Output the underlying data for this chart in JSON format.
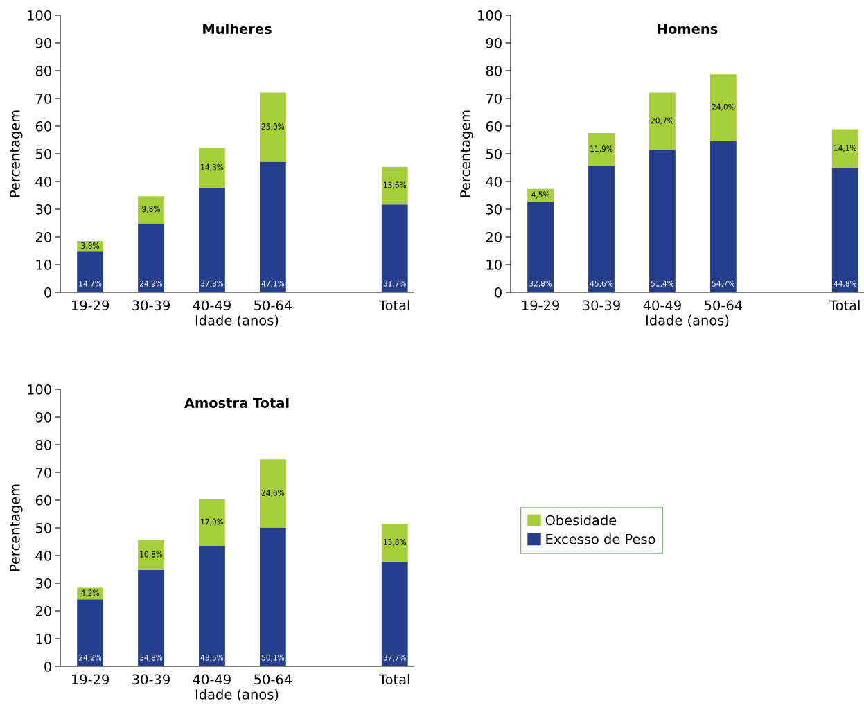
{
  "chart_data": [
    {
      "type": "bar",
      "stacked": true,
      "title": "Mulheres",
      "xlabel": "Idade (anos)",
      "ylabel": "Percentagem",
      "categories": [
        "19-29",
        "30-39",
        "40-49",
        "50-64",
        null,
        "Total"
      ],
      "ylim": [
        0,
        100
      ],
      "yticks": [
        0,
        10,
        20,
        30,
        40,
        50,
        60,
        70,
        80,
        90,
        100
      ],
      "grid": false,
      "legend": false,
      "series": [
        {
          "color": "#253f8e",
          "values": [
            14.7,
            24.9,
            37.8,
            47.1,
            null,
            31.7
          ],
          "value_labels": [
            "14,7%",
            "24,9%",
            "37,8%",
            "47,1%",
            null,
            "31,7%"
          ]
        },
        {
          "color": "#a6ce39",
          "values": [
            3.8,
            9.8,
            14.3,
            25.0,
            null,
            13.6
          ],
          "value_labels": [
            "3,8%",
            "9,8%",
            "14,3%",
            "25,0%",
            null,
            "13,6%"
          ]
        }
      ]
    },
    {
      "type": "bar",
      "stacked": true,
      "title": "Homens",
      "xlabel": "Idade (anos)",
      "ylabel": "Percentagem",
      "categories": [
        "19-29",
        "30-39",
        "40-49",
        "50-64",
        null,
        "Total"
      ],
      "ylim": [
        0,
        100
      ],
      "yticks": [
        0,
        10,
        20,
        30,
        40,
        50,
        60,
        70,
        80,
        90,
        100
      ],
      "grid": false,
      "legend": false,
      "series": [
        {
          "color": "#253f8e",
          "values": [
            32.8,
            45.6,
            51.4,
            54.7,
            null,
            44.8
          ],
          "value_labels": [
            "32,8%",
            "45,6%",
            "51,4%",
            "54,7%",
            null,
            "44,8%"
          ]
        },
        {
          "color": "#a6ce39",
          "values": [
            4.5,
            11.9,
            20.7,
            24.0,
            null,
            14.1
          ],
          "value_labels": [
            "4,5%",
            "11,9%",
            "20,7%",
            "24,0%",
            null,
            "14,1%"
          ]
        }
      ]
    },
    {
      "type": "bar",
      "stacked": true,
      "title": "Amostra Total",
      "xlabel": "Idade (anos)",
      "ylabel": "Percentagem",
      "categories": [
        "19-29",
        "30-39",
        "40-49",
        "50-64",
        null,
        "Total"
      ],
      "ylim": [
        0,
        100
      ],
      "yticks": [
        0,
        10,
        20,
        30,
        40,
        50,
        60,
        70,
        80,
        90,
        100
      ],
      "grid": false,
      "legend": "right",
      "series": [
        {
          "name": "Excesso de Peso",
          "color": "#253f8e",
          "values": [
            24.2,
            34.8,
            43.5,
            50.1,
            null,
            37.7
          ],
          "value_labels": [
            "24,2%",
            "34,8%",
            "43,5%",
            "50,1%",
            null,
            "37,7%"
          ]
        },
        {
          "name": "Obesidade",
          "color": "#a6ce39",
          "values": [
            4.2,
            10.8,
            17.0,
            24.6,
            null,
            13.8
          ],
          "value_labels": [
            "4,2%",
            "10,8%",
            "17,0%",
            "24,6%",
            null,
            "13,8%"
          ]
        }
      ]
    }
  ]
}
